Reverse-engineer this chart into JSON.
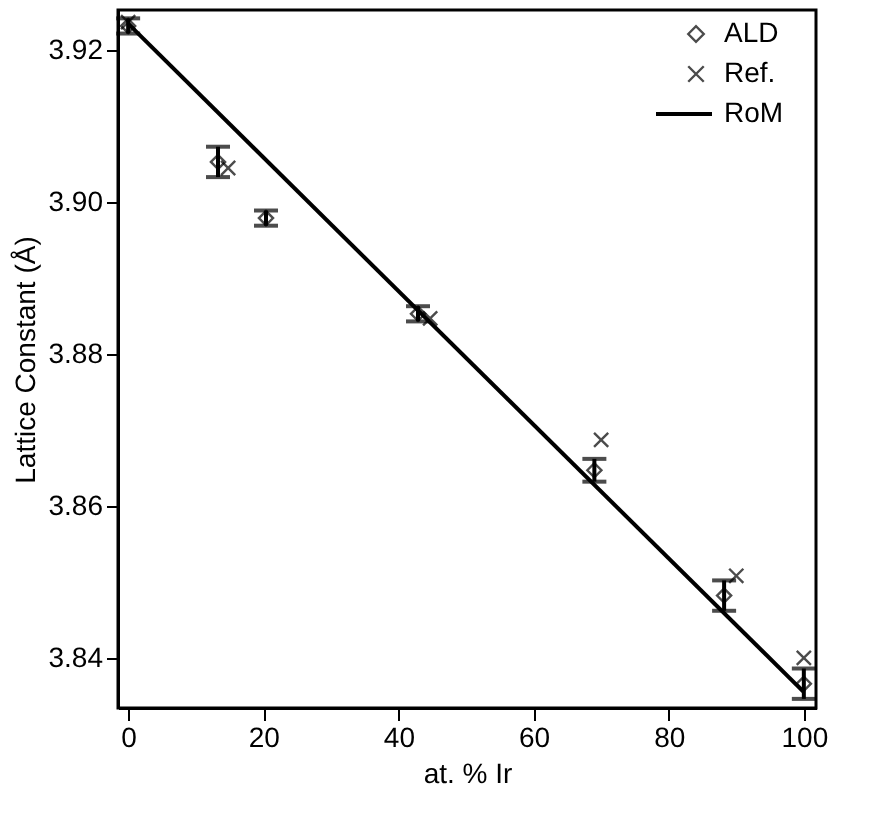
{
  "chart_data": {
    "type": "scatter",
    "xlabel": "at. % Ir",
    "ylabel": "Lattice Constant (Å)",
    "xlim": [
      -1.5,
      101.8
    ],
    "ylim": [
      3.8334,
      3.9253
    ],
    "xticks": [
      0,
      20,
      40,
      60,
      80,
      100
    ],
    "yticks": [
      {
        "value": 3.84,
        "label": "3.84"
      },
      {
        "value": 3.86,
        "label": "3.86"
      },
      {
        "value": 3.88,
        "label": "3.88"
      },
      {
        "value": 3.9,
        "label": "3.90"
      },
      {
        "value": 3.92,
        "label": "3.92"
      }
    ],
    "legend": "top right",
    "grid": false,
    "series": [
      {
        "name": "ALD",
        "marker": "diamond",
        "color": "#000000",
        "x": [
          0,
          13.3,
          20.4,
          42.9,
          69,
          88.2,
          100
        ],
        "values": [
          3.9232,
          3.9053,
          3.8979,
          3.8853,
          3.8647,
          3.8482,
          3.8366
        ],
        "errors": [
          0.001,
          0.002,
          0.001,
          0.001,
          0.0015,
          0.002,
          0.002
        ]
      },
      {
        "name": "Ref.",
        "marker": "cross",
        "color": "#000000",
        "x": [
          0,
          14.8,
          44.7,
          70,
          90,
          100
        ],
        "values": [
          3.9237,
          3.9045,
          3.8847,
          3.8687,
          3.8508,
          3.84
        ]
      },
      {
        "name": "RoM",
        "type": "line",
        "marker": "none",
        "line_style": "solid",
        "color": "#000000",
        "x": [
          0,
          100
        ],
        "values": [
          3.9235,
          3.8355
        ]
      }
    ]
  }
}
